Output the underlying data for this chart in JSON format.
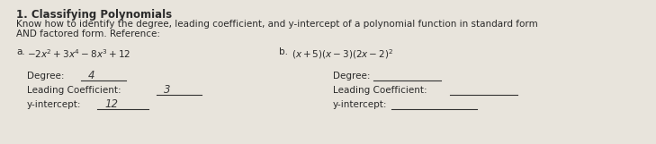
{
  "title": "1. Classifying Polynomials",
  "line1": "Know how to identify the degree, leading coefficient, and y-intercept of a polynomial function in standard form",
  "line2": "AND factored form. Reference:",
  "bg_color": "#e8e4dc",
  "text_color": "#2a2a2a",
  "label_a": "a.",
  "expr_a": "$-2x^2 + 3x^4 - 8x^3 + 12$",
  "label_b": "b.",
  "expr_b": "$(x+5)(x-3)(2x-2)^2$",
  "degree_a_label": "Degree:",
  "degree_a_value": "4",
  "lc_a_label": "Leading Coefficient:",
  "lc_a_value": "3",
  "yi_a_label": "y-intercept:",
  "yi_a_value": "12",
  "degree_b_label": "Degree:",
  "lc_b_label": "Leading Coefficient:",
  "yi_b_label": "y-intercept:",
  "font_size_title": 8.5,
  "font_size_body": 7.5,
  "font_size_answers": 7.5,
  "line_color": "#333333",
  "line_width": 0.8
}
